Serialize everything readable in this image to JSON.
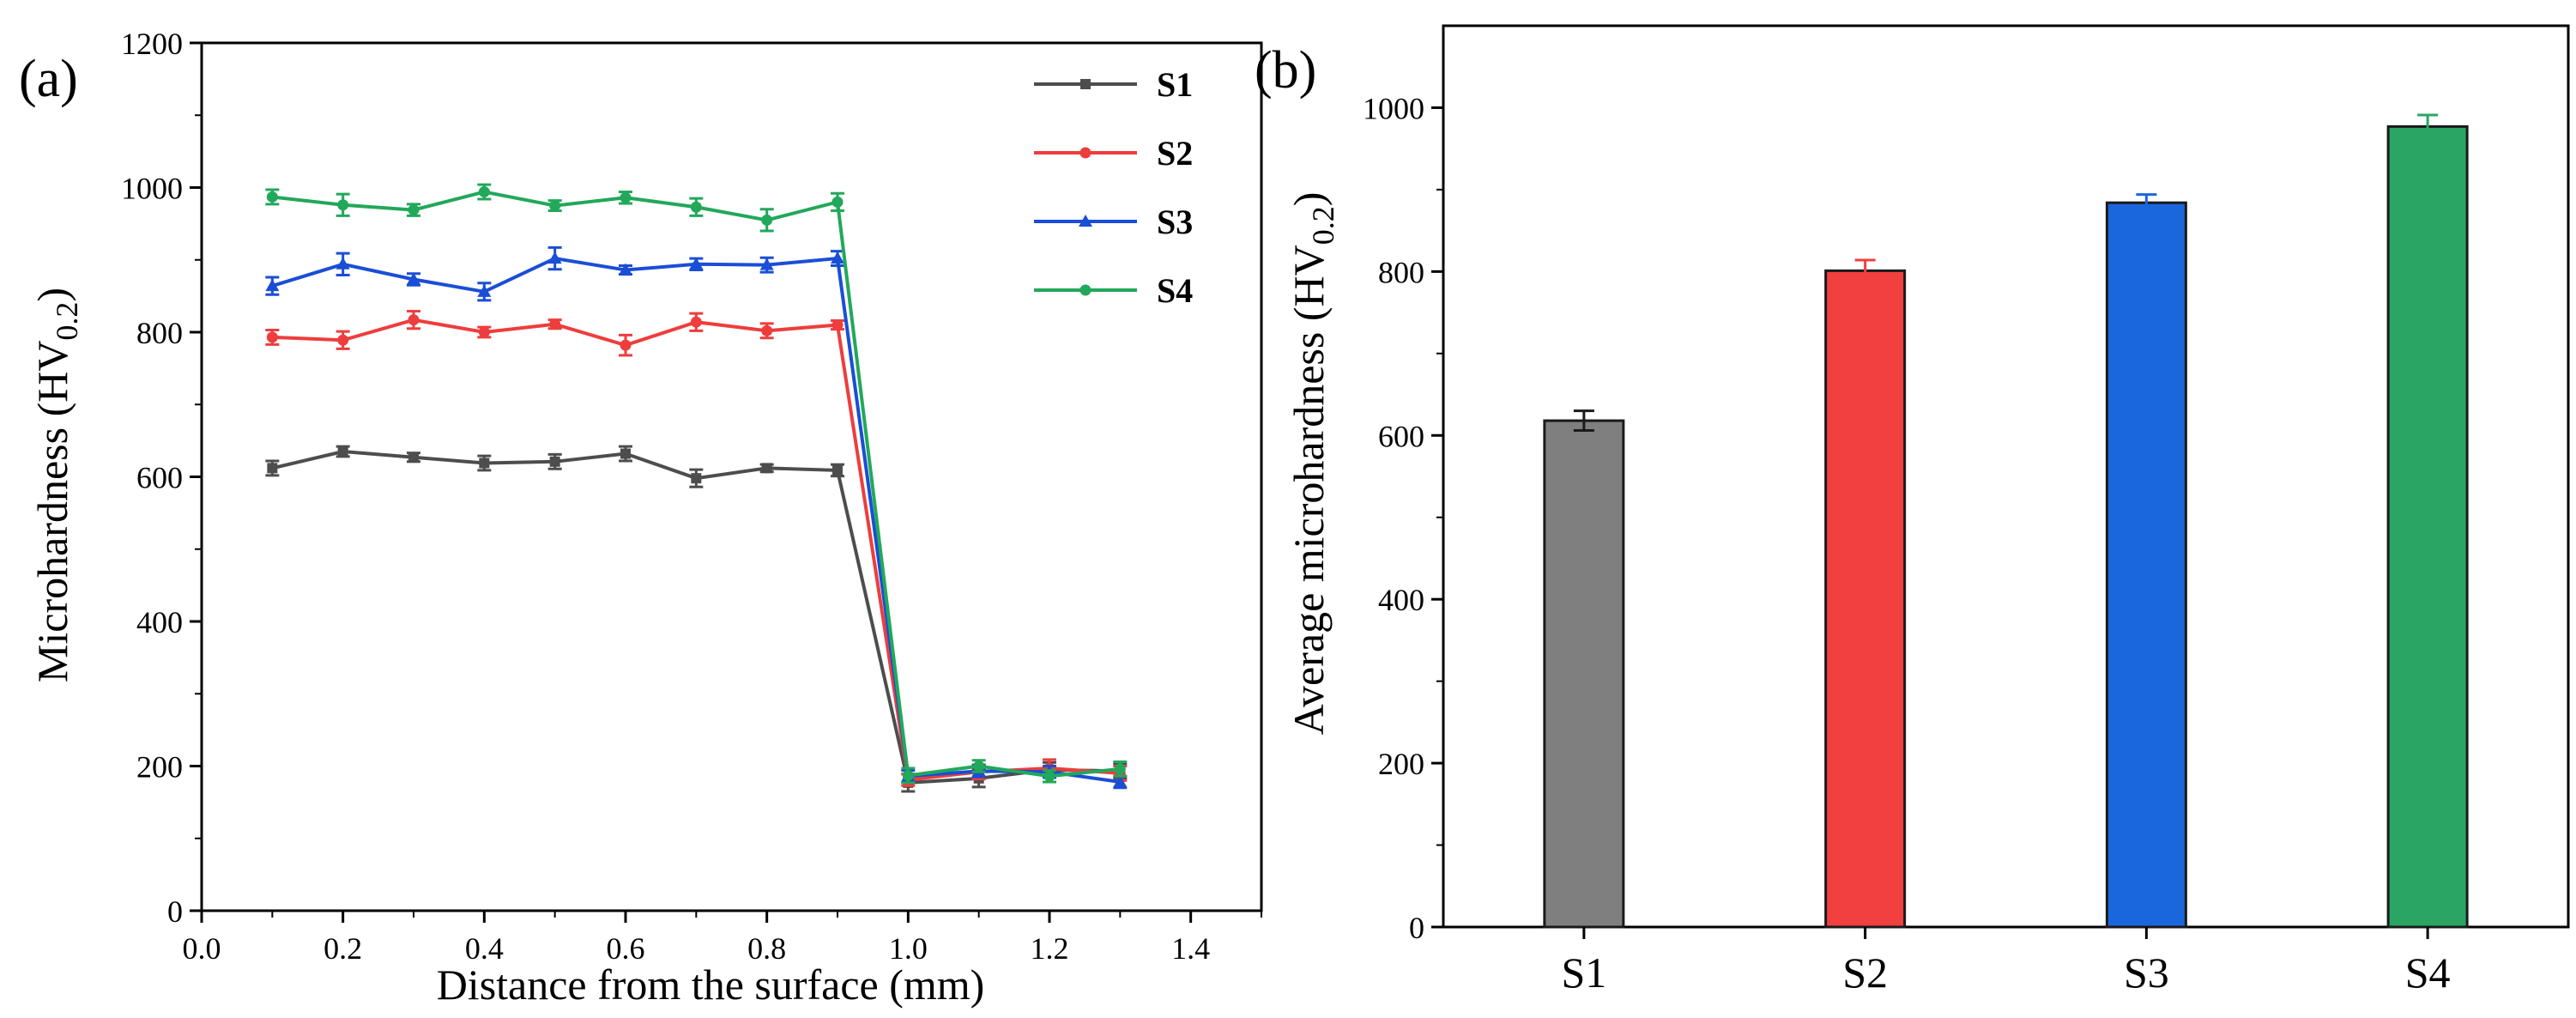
{
  "chart_data": [
    {
      "panel_label": "(a)",
      "type": "line",
      "xlabel": "Distance from the surface (mm)",
      "ylabel_main": "Microhardness (HV",
      "ylabel_sub": "0.2",
      "ylabel_close": ")",
      "xlim": [
        0.0,
        1.5
      ],
      "ylim": [
        0,
        1200
      ],
      "xticks": [
        "0.0",
        "0.2",
        "0.4",
        "0.6",
        "0.8",
        "1.0",
        "1.2",
        "1.4"
      ],
      "xtick_values": [
        0.0,
        0.2,
        0.4,
        0.6,
        0.8,
        1.0,
        1.2,
        1.4
      ],
      "yticks": [
        "0",
        "200",
        "400",
        "600",
        "800",
        "1000",
        "1200"
      ],
      "ytick_values": [
        0,
        200,
        400,
        600,
        800,
        1000,
        1200
      ],
      "legend_position": "top-right",
      "x": [
        0.1,
        0.2,
        0.3,
        0.4,
        0.5,
        0.6,
        0.7,
        0.8,
        0.9,
        1.0,
        1.1,
        1.2,
        1.3
      ],
      "series": [
        {
          "name": "S1",
          "color": "#4d4d4d",
          "marker": "square",
          "values": [
            612,
            635,
            627,
            619,
            621,
            632,
            598,
            612,
            609,
            177,
            183,
            195,
            193
          ],
          "errors": [
            10,
            7,
            6,
            10,
            10,
            10,
            12,
            5,
            8,
            12,
            12,
            10,
            10
          ]
        },
        {
          "name": "S2",
          "color": "#ee3d3d",
          "marker": "circle",
          "values": [
            793,
            789,
            817,
            800,
            811,
            782,
            814,
            802,
            810,
            181,
            192,
            197,
            190
          ],
          "errors": [
            10,
            12,
            12,
            7,
            6,
            14,
            12,
            10,
            6,
            8,
            10,
            12,
            10
          ]
        },
        {
          "name": "S3",
          "color": "#1a4ed6",
          "marker": "triangle",
          "values": [
            864,
            894,
            873,
            856,
            902,
            886,
            894,
            893,
            902,
            186,
            193,
            192,
            178
          ],
          "errors": [
            12,
            15,
            8,
            12,
            15,
            6,
            8,
            10,
            10,
            8,
            8,
            8,
            8
          ]
        },
        {
          "name": "S4",
          "color": "#22a85a",
          "marker": "circle",
          "values": [
            987,
            976,
            969,
            994,
            975,
            986,
            973,
            955,
            980,
            187,
            200,
            186,
            196
          ],
          "errors": [
            10,
            15,
            8,
            10,
            7,
            8,
            12,
            15,
            12,
            10,
            8,
            8,
            10
          ]
        }
      ]
    },
    {
      "panel_label": "(b)",
      "type": "bar",
      "xlabel": "",
      "ylabel_main": "Average microhardness (HV",
      "ylabel_sub": "0.2",
      "ylabel_close": ")",
      "ylim": [
        0,
        1100
      ],
      "yticks": [
        "0",
        "200",
        "400",
        "600",
        "800",
        "1000"
      ],
      "ytick_values": [
        0,
        200,
        400,
        600,
        800,
        1000
      ],
      "categories": [
        "S1",
        "S2",
        "S3",
        "S4"
      ],
      "values": [
        618,
        801,
        884,
        977
      ],
      "errors": [
        12,
        13,
        10,
        14
      ],
      "colors": [
        "#7f7f7f",
        "#f23f3f",
        "#1a66dd",
        "#2aa564"
      ]
    }
  ]
}
